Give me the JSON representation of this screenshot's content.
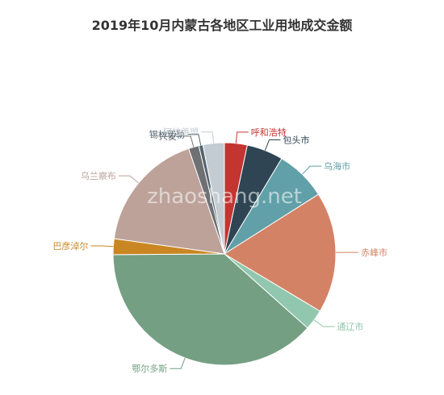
{
  "chart_data": {
    "type": "pie",
    "title": "2019年10月内蒙古各地区工业用地成交金额",
    "slices": [
      {
        "name": "呼和浩特",
        "value": 3.3,
        "color": "#c23531"
      },
      {
        "name": "包头市",
        "value": 5.3,
        "color": "#2f4554"
      },
      {
        "name": "乌海市",
        "value": 7.4,
        "color": "#61a0a8"
      },
      {
        "name": "赤峰市",
        "value": 17.6,
        "color": "#d48265"
      },
      {
        "name": "通辽市",
        "value": 3.0,
        "color": "#91c7ae"
      },
      {
        "name": "鄂尔多斯",
        "value": 38.3,
        "color": "#749f83"
      },
      {
        "name": "巴彦淖尔",
        "value": 2.3,
        "color": "#ca8622"
      },
      {
        "name": "乌兰察布",
        "value": 17.6,
        "color": "#bda29a"
      },
      {
        "name": "兴安",
        "value": 1.5,
        "color": "#6e7074"
      },
      {
        "name": "锡林郭勒",
        "value": 0.6,
        "color": "#546570"
      },
      {
        "name": "阿拉善盟",
        "value": 3.1,
        "color": "#c4ccd3"
      }
    ],
    "legend": "none",
    "start_angle_deg": 90,
    "direction": "clockwise"
  },
  "watermark": "zhaoshang.net"
}
